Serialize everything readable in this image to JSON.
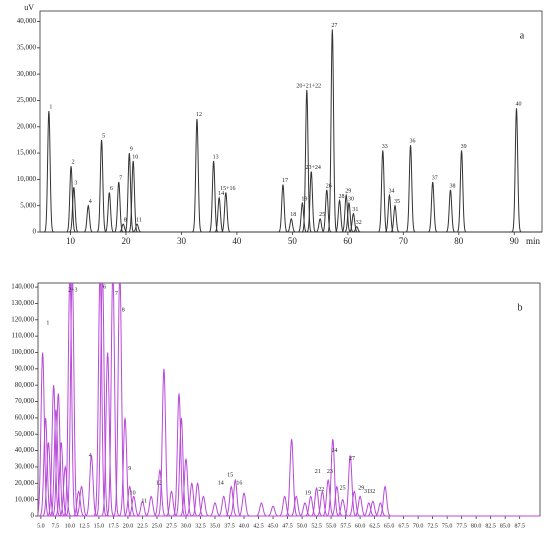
{
  "chart_data": [
    {
      "type": "line",
      "panel_label": "a",
      "y_unit": "uV",
      "x_unit": "min",
      "color": "#333333",
      "xlim": [
        4.5,
        95
      ],
      "ylim": [
        0,
        42000
      ],
      "xticks": [
        10,
        20,
        30,
        40,
        50,
        60,
        70,
        80,
        90
      ],
      "yticks": [
        0,
        {
          "value": 5000,
          "label": "5,000"
        },
        {
          "value": 10000,
          "label": "10,000"
        },
        {
          "value": 15000,
          "label": "15,000"
        },
        {
          "value": 20000,
          "label": "20,000"
        },
        {
          "value": 25000,
          "label": "25,000"
        },
        {
          "value": 30000,
          "label": "30,000"
        },
        {
          "value": 35000,
          "label": "35,000"
        },
        {
          "value": 40000,
          "label": "40,000"
        }
      ],
      "peaks": {
        "labels": [
          "1",
          "2",
          "3",
          "4",
          "5",
          "6",
          "7",
          "8",
          "9",
          "10",
          "11",
          "12",
          "13",
          "14",
          "15+16",
          "17",
          "18",
          "19",
          "20+21+22",
          "23+24",
          "25",
          "26",
          "27",
          "28",
          "29",
          "30",
          "31",
          "32",
          "33",
          "34",
          "35",
          "36",
          "37",
          "38",
          "39",
          "40"
        ],
        "x": [
          6.1,
          10.1,
          10.6,
          13.2,
          15.6,
          17.0,
          18.7,
          19.5,
          20.6,
          21.3,
          22.0,
          32.8,
          35.8,
          36.8,
          38.0,
          48.3,
          49.8,
          51.8,
          52.6,
          53.4,
          55.0,
          56.2,
          57.2,
          58.5,
          59.7,
          60.2,
          61.0,
          61.6,
          66.3,
          67.5,
          68.5,
          71.3,
          75.3,
          78.5,
          80.5,
          90.4
        ],
        "values": [
          23000,
          12500,
          8500,
          5000,
          17500,
          7500,
          9500,
          1500,
          15000,
          13500,
          1500,
          21500,
          13500,
          6500,
          7500,
          9000,
          2500,
          5500,
          27000,
          11500,
          2500,
          8000,
          38500,
          6000,
          7000,
          5500,
          3500,
          1000,
          15500,
          7000,
          5000,
          16500,
          9500,
          8000,
          15500,
          23500
        ]
      }
    },
    {
      "type": "line",
      "panel_label": "b",
      "color": "#b84ad8",
      "xlim": [
        4.5,
        91
      ],
      "ylim": [
        0,
        142500
      ],
      "xticks": [
        {
          "value": 5,
          "label": "5.0"
        },
        {
          "value": 7.5,
          "label": "7.5"
        },
        {
          "value": 10,
          "label": "10.0"
        },
        {
          "value": 12.5,
          "label": "12.5"
        },
        {
          "value": 15,
          "label": "15.0"
        },
        {
          "value": 17.5,
          "label": "17.5"
        },
        {
          "value": 20,
          "label": "20.0"
        },
        {
          "value": 22.5,
          "label": "22.5"
        },
        {
          "value": 25,
          "label": "25.0"
        },
        {
          "value": 27.5,
          "label": "27.5"
        },
        {
          "value": 30,
          "label": "30.0"
        },
        {
          "value": 32.5,
          "label": "32.5"
        },
        {
          "value": 35,
          "label": "35.0"
        },
        {
          "value": 37.5,
          "label": "37.5"
        },
        {
          "value": 40,
          "label": "40.0"
        },
        {
          "value": 42.5,
          "label": "42.5"
        },
        {
          "value": 45,
          "label": "45.0"
        },
        {
          "value": 47.5,
          "label": "47.5"
        },
        {
          "value": 50,
          "label": "50.0"
        },
        {
          "value": 52.5,
          "label": "52.5"
        },
        {
          "value": 55,
          "label": "55.0"
        },
        {
          "value": 57.5,
          "label": "57.5"
        },
        {
          "value": 60,
          "label": "60.0"
        },
        {
          "value": 62.5,
          "label": "62.5"
        },
        {
          "value": 65,
          "label": "65.0"
        },
        {
          "value": 67.5,
          "label": "67.5"
        },
        {
          "value": 70,
          "label": "70.0"
        },
        {
          "value": 72.5,
          "label": "72.5"
        },
        {
          "value": 75,
          "label": "75.0"
        },
        {
          "value": 77.5,
          "label": "77.5"
        },
        {
          "value": 80,
          "label": "80.0"
        },
        {
          "value": 82.5,
          "label": "82.5"
        },
        {
          "value": 85,
          "label": "85.0"
        },
        {
          "value": 87.5,
          "label": "87.5"
        }
      ],
      "yticks": [
        0,
        {
          "value": 10000,
          "label": "10,000"
        },
        {
          "value": 20000,
          "label": "20,000"
        },
        {
          "value": 30000,
          "label": "30,000"
        },
        {
          "value": 40000,
          "label": "40,000"
        },
        {
          "value": 50000,
          "label": "50,000"
        },
        {
          "value": 60000,
          "label": "60,000"
        },
        {
          "value": 70000,
          "label": "70,000"
        },
        {
          "value": 80000,
          "label": "80,000"
        },
        {
          "value": 90000,
          "label": "90,000"
        },
        {
          "value": 100000,
          "label": "100,000"
        },
        {
          "value": 110000,
          "label": "110,000"
        },
        {
          "value": 120000,
          "label": "120,000"
        },
        {
          "value": 130000,
          "label": "130,000"
        },
        {
          "value": 140000,
          "label": "140,000"
        }
      ],
      "peaks": {
        "x": [
          5.3,
          5.8,
          6.3,
          7.2,
          7.6,
          8.0,
          8.5,
          9.2,
          10.0,
          10.4,
          11.5,
          12.0,
          13.7,
          15.2,
          15.6,
          16.5,
          17.4,
          18.6,
          19.5,
          20.3,
          21.0,
          22.5,
          24.0,
          25.5,
          26.2,
          27.5,
          28.8,
          29.2,
          30.0,
          31.0,
          32.0,
          33.0,
          35.0,
          36.5,
          37.8,
          38.5,
          40.0,
          43.0,
          45.0,
          47.0,
          48.2,
          49.0,
          50.5,
          51.5,
          52.5,
          53.5,
          54.5,
          55.3,
          56.0,
          57.0,
          58.3,
          59.0,
          60.0,
          61.5,
          62.2,
          63.5,
          64.3
        ],
        "values": [
          100000,
          60000,
          45000,
          80000,
          65000,
          75000,
          45000,
          30000,
          150000,
          150000,
          15000,
          18000,
          37000,
          150000,
          150000,
          100000,
          150000,
          150000,
          60000,
          18000,
          12000,
          9000,
          12000,
          28000,
          90000,
          15000,
          75000,
          60000,
          35000,
          20000,
          20000,
          12000,
          8000,
          12000,
          18000,
          22000,
          14000,
          8000,
          6000,
          12000,
          47000,
          12000,
          8000,
          12000,
          17000,
          15000,
          22000,
          47000,
          18000,
          10000,
          37000,
          15000,
          12000,
          8000,
          9000,
          8000,
          18000
        ]
      },
      "annotations": {
        "labels": [
          "1",
          "2+3",
          "6",
          "7",
          "8",
          "4",
          "9",
          "10",
          "11",
          "12",
          "14",
          "15",
          "16",
          "19",
          "21",
          "22",
          "23",
          "24",
          "25",
          "27",
          "29",
          "31",
          "32"
        ],
        "x": [
          6.2,
          10.5,
          16.0,
          18.0,
          19.2,
          13.5,
          20.3,
          20.8,
          22.8,
          25.3,
          36.0,
          37.6,
          39.2,
          51.0,
          52.7,
          53.3,
          54.8,
          55.6,
          57.0,
          58.6,
          60.2,
          61.2,
          62.1
        ],
        "y": [
          118000,
          138000,
          140000,
          136000,
          126000,
          37000,
          29000,
          14000,
          9000,
          20000,
          20000,
          25000,
          20000,
          14000,
          27000,
          16000,
          27000,
          40000,
          17000,
          35000,
          17000,
          15000,
          15000
        ]
      }
    }
  ]
}
